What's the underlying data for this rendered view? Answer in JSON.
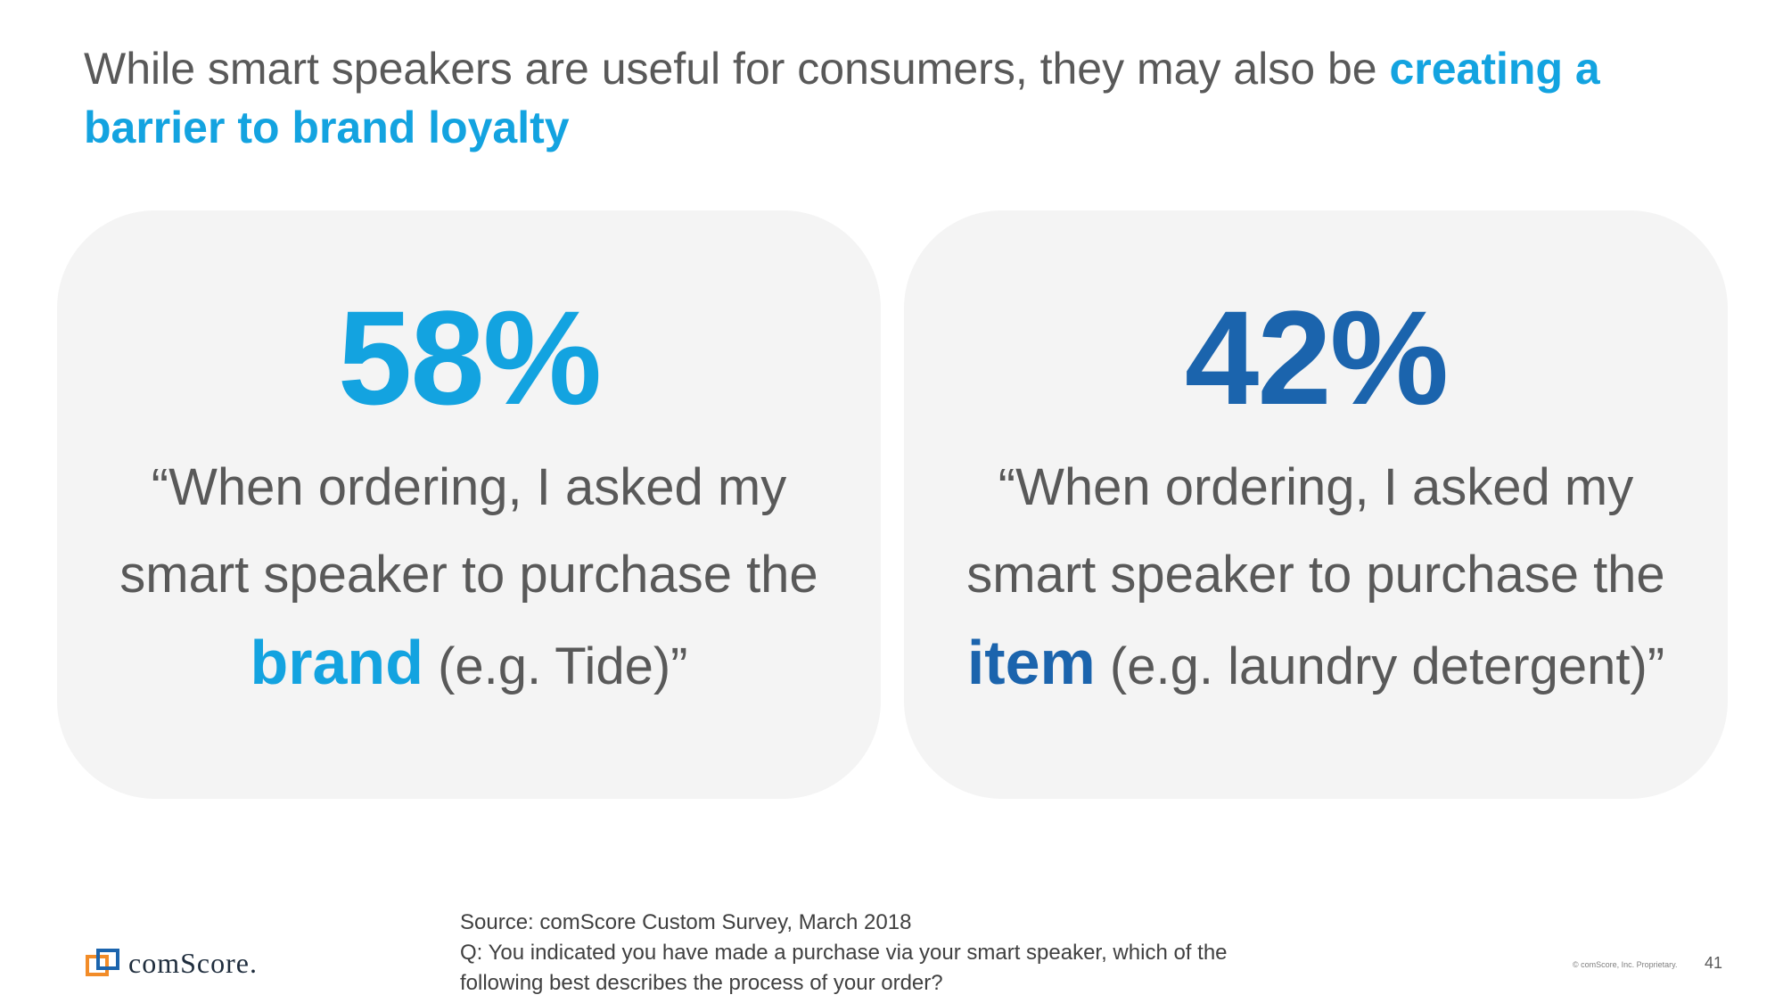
{
  "title": {
    "text": "While smart speakers are useful for consumers, they may also be ",
    "highlight": "creating a barrier to brand loyalty"
  },
  "cards": [
    {
      "stat": "58%",
      "quote_line1": "“When ordering, I asked my",
      "quote_line2": "smart speaker to purchase the",
      "keyword": "brand",
      "quote_end": " (e.g. Tide)”",
      "accent": "#13a3e0"
    },
    {
      "stat": "42%",
      "quote_line1": "“When ordering, I asked my",
      "quote_line2": "smart speaker to purchase the",
      "keyword": "item",
      "quote_end": " (e.g. laundry detergent)”",
      "accent": "#1b64ad"
    }
  ],
  "footer": {
    "source": "Source: comScore Custom Survey, March 2018",
    "question_line1": "Q: You indicated you have made a purchase via your smart speaker, which of the",
    "question_line2": "following best describes the process of your order?"
  },
  "logo": {
    "text": "comScore.",
    "icon": "comscore-logo-icon"
  },
  "copyright": "© comScore, Inc. Proprietary.",
  "page_number": "41"
}
